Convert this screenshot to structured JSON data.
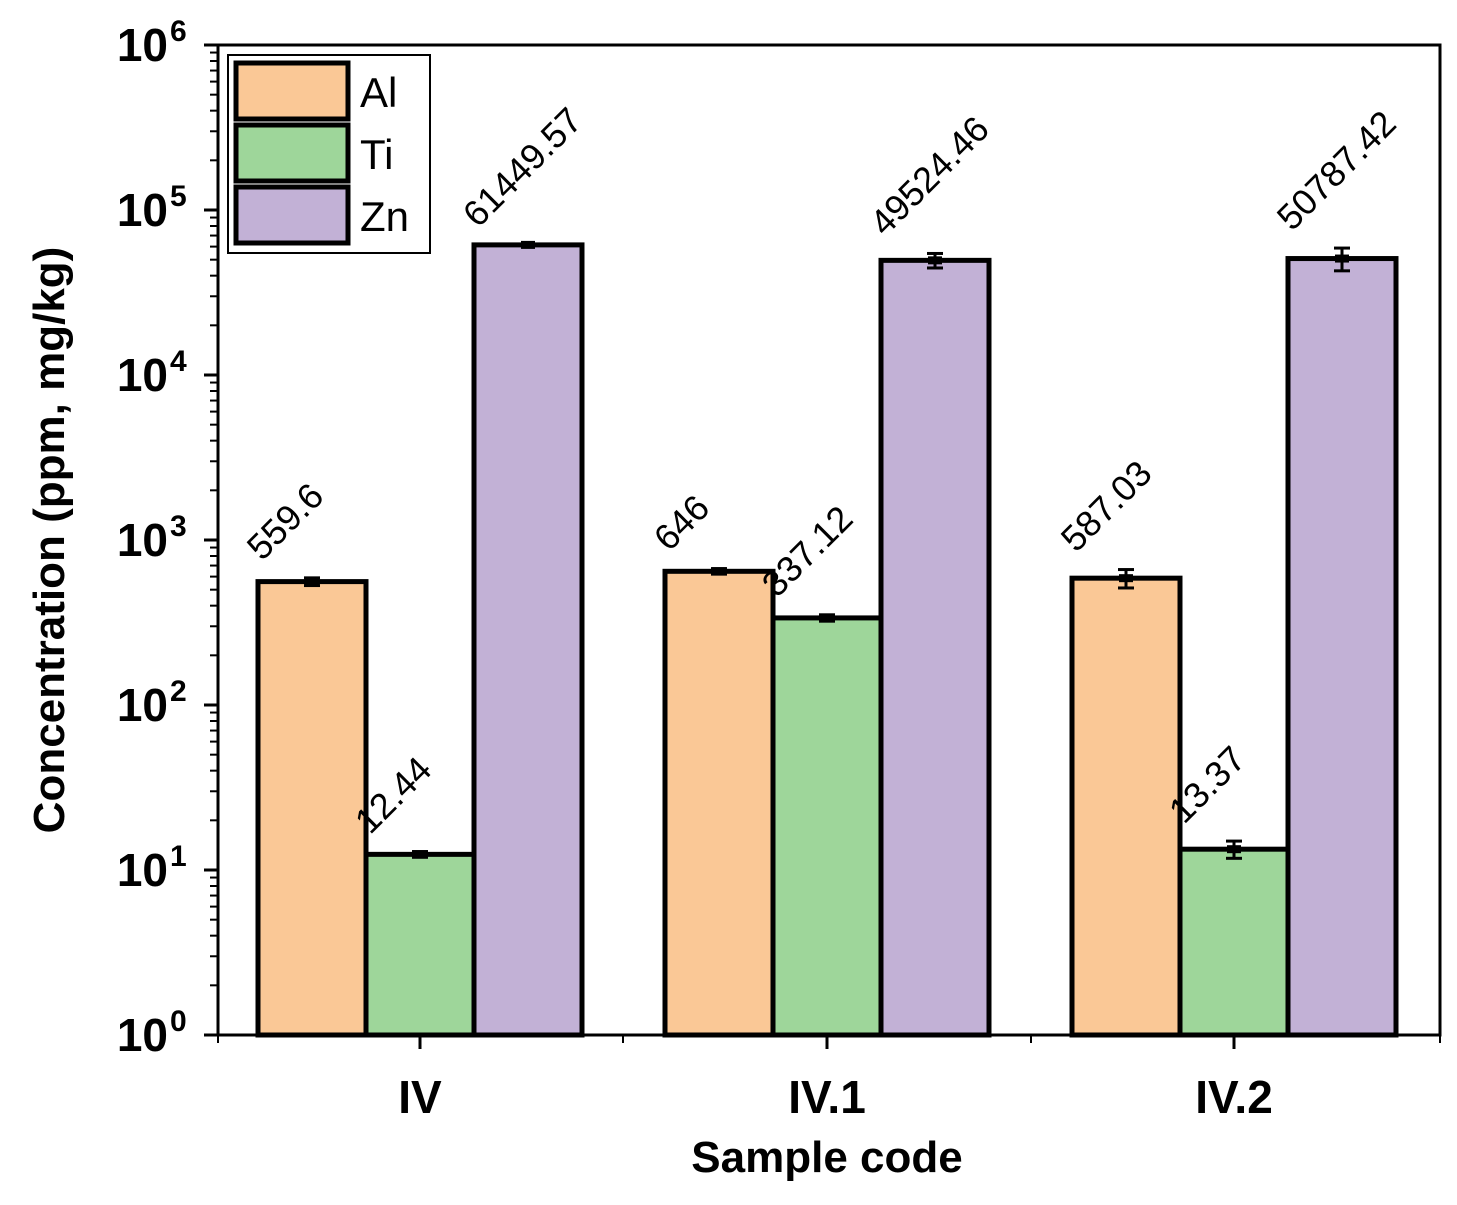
{
  "chart_data": {
    "type": "bar",
    "yscale": "log",
    "title": "",
    "xlabel": "Sample code",
    "ylabel": "Concentration (ppm, mg/kg)",
    "ylim": [
      1,
      1000000
    ],
    "yticks": [
      {
        "base": "10",
        "exp": "0"
      },
      {
        "base": "10",
        "exp": "1"
      },
      {
        "base": "10",
        "exp": "2"
      },
      {
        "base": "10",
        "exp": "3"
      },
      {
        "base": "10",
        "exp": "4"
      },
      {
        "base": "10",
        "exp": "5"
      },
      {
        "base": "10",
        "exp": "6"
      }
    ],
    "categories": [
      "IV",
      "IV.1",
      "IV.2"
    ],
    "legend_position": "top-left",
    "series": [
      {
        "name": "Al",
        "color": "#FAC896",
        "values": [
          559.6,
          646,
          587.03
        ],
        "labels": [
          "559.6",
          "646",
          "587.03"
        ],
        "errors": [
          30,
          25,
          75
        ]
      },
      {
        "name": "Ti",
        "color": "#9ED69A",
        "values": [
          12.44,
          337.12,
          13.37
        ],
        "labels": [
          "12.44",
          "337.12",
          "13.37"
        ],
        "errors": [
          0.5,
          15,
          1.6
        ]
      },
      {
        "name": "Zn",
        "color": "#C2B1D6",
        "values": [
          61449.57,
          49524.46,
          50787.42
        ],
        "labels": [
          "61449.57",
          "49524.46",
          "50787.42"
        ],
        "errors": [
          0,
          5000,
          8000
        ]
      }
    ]
  }
}
